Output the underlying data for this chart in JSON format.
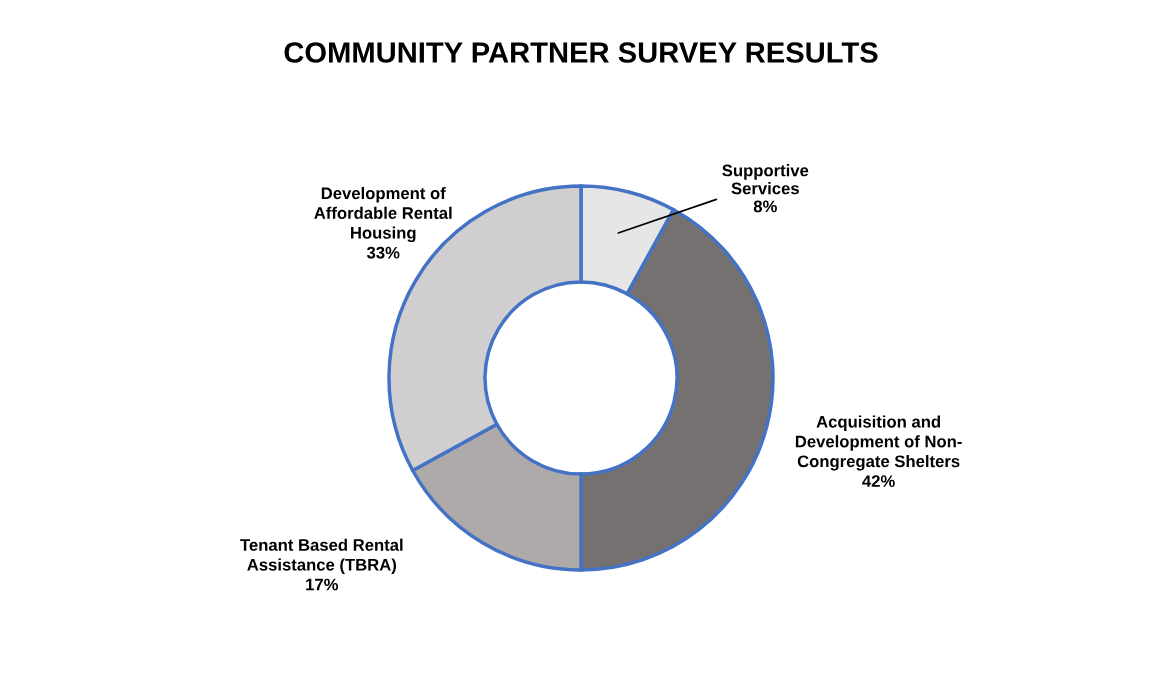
{
  "chart_data": {
    "type": "donut",
    "title": "COMMUNITY PARTNER SURVEY RESULTS",
    "categories": [
      "Supportive\nServices",
      "Acquisition and\nDevelopment of Non-\nCongregate Shelters",
      "Tenant Based Rental\nAssistance (TBRA)",
      "Development of\nAffordable Rental\nHousing"
    ],
    "values": [
      8,
      42,
      17,
      33
    ],
    "colors": [
      "#e7e6e6",
      "#767171",
      "#aeaaaa",
      "#d0cece"
    ],
    "value_labels": [
      "8%",
      "42%",
      "17%",
      "33%"
    ],
    "legend": false
  }
}
